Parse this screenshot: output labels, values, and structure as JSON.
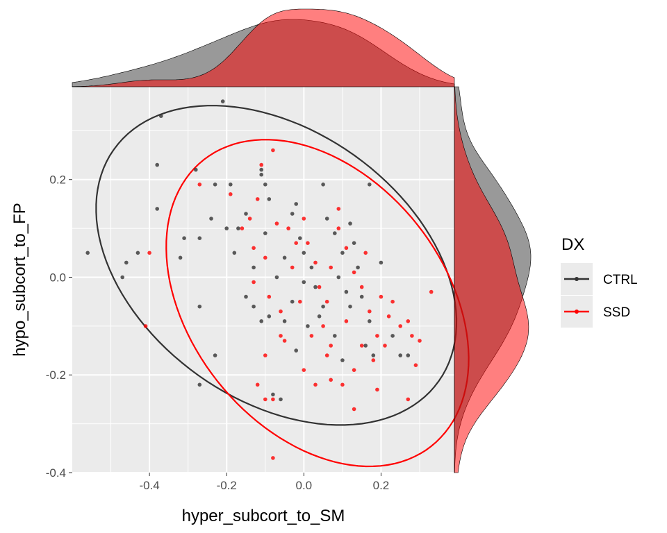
{
  "chart_data": {
    "type": "scatter",
    "xlabel": "hyper_subcort_to_SM",
    "ylabel": "hypo_subcort_to_FP",
    "xlim": [
      -0.6,
      0.39
    ],
    "ylim": [
      -0.4,
      0.39
    ],
    "x_ticks": [
      -0.4,
      -0.2,
      0.0,
      0.2
    ],
    "x_tick_labels": [
      "-0.4",
      "-0.2",
      "0.0",
      "0.2"
    ],
    "y_ticks": [
      -0.4,
      -0.2,
      0.0,
      0.2
    ],
    "y_tick_labels": [
      "-0.4",
      "-0.2",
      "0.0",
      "0.2"
    ],
    "grid": true,
    "marginal": "density",
    "ellipse": "normal, 95%",
    "legend": {
      "title": "DX",
      "position": "right",
      "entries": [
        "CTRL",
        "SSD"
      ]
    },
    "series": [
      {
        "name": "CTRL",
        "color": "#333333",
        "points": [
          [
            -0.21,
            0.36
          ],
          [
            -0.37,
            0.33
          ],
          [
            -0.38,
            0.23
          ],
          [
            -0.38,
            0.14
          ],
          [
            -0.56,
            0.05
          ],
          [
            -0.47,
            0.0
          ],
          [
            -0.43,
            0.05
          ],
          [
            -0.46,
            0.03
          ],
          [
            -0.31,
            0.08
          ],
          [
            -0.32,
            0.04
          ],
          [
            -0.28,
            0.22
          ],
          [
            -0.27,
            0.08
          ],
          [
            -0.27,
            -0.06
          ],
          [
            -0.23,
            0.19
          ],
          [
            -0.19,
            0.19
          ],
          [
            -0.24,
            0.12
          ],
          [
            -0.23,
            -0.16
          ],
          [
            -0.27,
            -0.22
          ],
          [
            -0.18,
            0.05
          ],
          [
            -0.17,
            0.1
          ],
          [
            -0.15,
            0.13
          ],
          [
            -0.11,
            0.21
          ],
          [
            -0.11,
            0.22
          ],
          [
            -0.1,
            0.19
          ],
          [
            -0.1,
            0.09
          ],
          [
            -0.13,
            0.02
          ],
          [
            -0.13,
            -0.06
          ],
          [
            -0.11,
            -0.09
          ],
          [
            -0.09,
            -0.08
          ],
          [
            -0.08,
            -0.24
          ],
          [
            -0.06,
            -0.25
          ],
          [
            -0.02,
            0.15
          ],
          [
            -0.01,
            0.08
          ],
          [
            0.0,
            0.05
          ],
          [
            0.02,
            0.02
          ],
          [
            0.03,
            -0.02
          ],
          [
            -0.03,
            -0.05
          ],
          [
            -0.05,
            -0.09
          ],
          [
            -0.02,
            -0.15
          ],
          [
            0.01,
            -0.1
          ],
          [
            0.05,
            -0.06
          ],
          [
            0.06,
            0.12
          ],
          [
            0.08,
            0.09
          ],
          [
            0.09,
            0.0
          ],
          [
            0.11,
            -0.03
          ],
          [
            0.12,
            -0.06
          ],
          [
            0.08,
            -0.12
          ],
          [
            0.1,
            -0.17
          ],
          [
            0.13,
            0.07
          ],
          [
            0.14,
            0.02
          ],
          [
            0.15,
            -0.04
          ],
          [
            0.17,
            -0.09
          ],
          [
            0.16,
            -0.14
          ],
          [
            0.18,
            -0.16
          ],
          [
            0.17,
            0.19
          ],
          [
            0.05,
            0.19
          ],
          [
            -0.03,
            0.13
          ],
          [
            -0.07,
            0.0
          ],
          [
            0.04,
            -0.08
          ],
          [
            0.23,
            -0.12
          ],
          [
            0.25,
            -0.16
          ],
          [
            0.27,
            -0.16
          ],
          [
            -0.2,
            0.1
          ],
          [
            -0.05,
            0.04
          ],
          [
            0.0,
            -0.01
          ],
          [
            0.1,
            0.05
          ],
          [
            0.2,
            0.03
          ],
          [
            -0.15,
            -0.04
          ],
          [
            -0.09,
            0.16
          ],
          [
            0.12,
            0.11
          ]
        ]
      },
      {
        "name": "SSD",
        "color": "#ff0000",
        "points": [
          [
            -0.08,
            0.26
          ],
          [
            -0.11,
            0.23
          ],
          [
            -0.27,
            0.19
          ],
          [
            -0.41,
            -0.1
          ],
          [
            -0.4,
            0.05
          ],
          [
            -0.19,
            0.17
          ],
          [
            -0.12,
            0.16
          ],
          [
            -0.16,
            0.1
          ],
          [
            -0.13,
            0.06
          ],
          [
            -0.1,
            0.04
          ],
          [
            -0.13,
            -0.01
          ],
          [
            -0.09,
            -0.04
          ],
          [
            -0.06,
            -0.07
          ],
          [
            -0.06,
            -0.12
          ],
          [
            -0.05,
            -0.13
          ],
          [
            -0.1,
            -0.16
          ],
          [
            -0.12,
            -0.22
          ],
          [
            -0.1,
            -0.25
          ],
          [
            -0.08,
            -0.25
          ],
          [
            -0.08,
            -0.37
          ],
          [
            -0.04,
            0.1
          ],
          [
            -0.02,
            0.07
          ],
          [
            0.01,
            0.07
          ],
          [
            0.03,
            0.03
          ],
          [
            0.04,
            -0.02
          ],
          [
            0.06,
            -0.05
          ],
          [
            0.05,
            -0.1
          ],
          [
            0.07,
            -0.14
          ],
          [
            0.06,
            -0.16
          ],
          [
            0.07,
            -0.21
          ],
          [
            0.1,
            -0.22
          ],
          [
            0.09,
            0.1
          ],
          [
            0.11,
            0.06
          ],
          [
            0.13,
            0.01
          ],
          [
            0.15,
            -0.02
          ],
          [
            0.17,
            -0.07
          ],
          [
            0.19,
            -0.12
          ],
          [
            0.21,
            -0.14
          ],
          [
            0.18,
            -0.17
          ],
          [
            0.13,
            -0.19
          ],
          [
            0.13,
            -0.27
          ],
          [
            0.19,
            -0.23
          ],
          [
            0.22,
            -0.08
          ],
          [
            0.23,
            -0.05
          ],
          [
            0.27,
            -0.09
          ],
          [
            0.28,
            -0.12
          ],
          [
            0.27,
            -0.25
          ],
          [
            0.3,
            -0.13
          ],
          [
            0.29,
            -0.18
          ],
          [
            0.33,
            -0.03
          ],
          [
            0.0,
            -0.19
          ],
          [
            0.02,
            -0.12
          ],
          [
            -0.01,
            -0.05
          ],
          [
            -0.03,
            0.02
          ],
          [
            0.0,
            0.12
          ],
          [
            0.09,
            0.14
          ],
          [
            0.07,
            0.02
          ],
          [
            0.11,
            -0.09
          ],
          [
            0.15,
            -0.14
          ],
          [
            0.2,
            -0.04
          ],
          [
            0.16,
            0.05
          ],
          [
            -0.07,
            0.11
          ],
          [
            -0.14,
            0.12
          ],
          [
            0.03,
            -0.22
          ],
          [
            0.25,
            -0.1
          ]
        ]
      }
    ]
  }
}
